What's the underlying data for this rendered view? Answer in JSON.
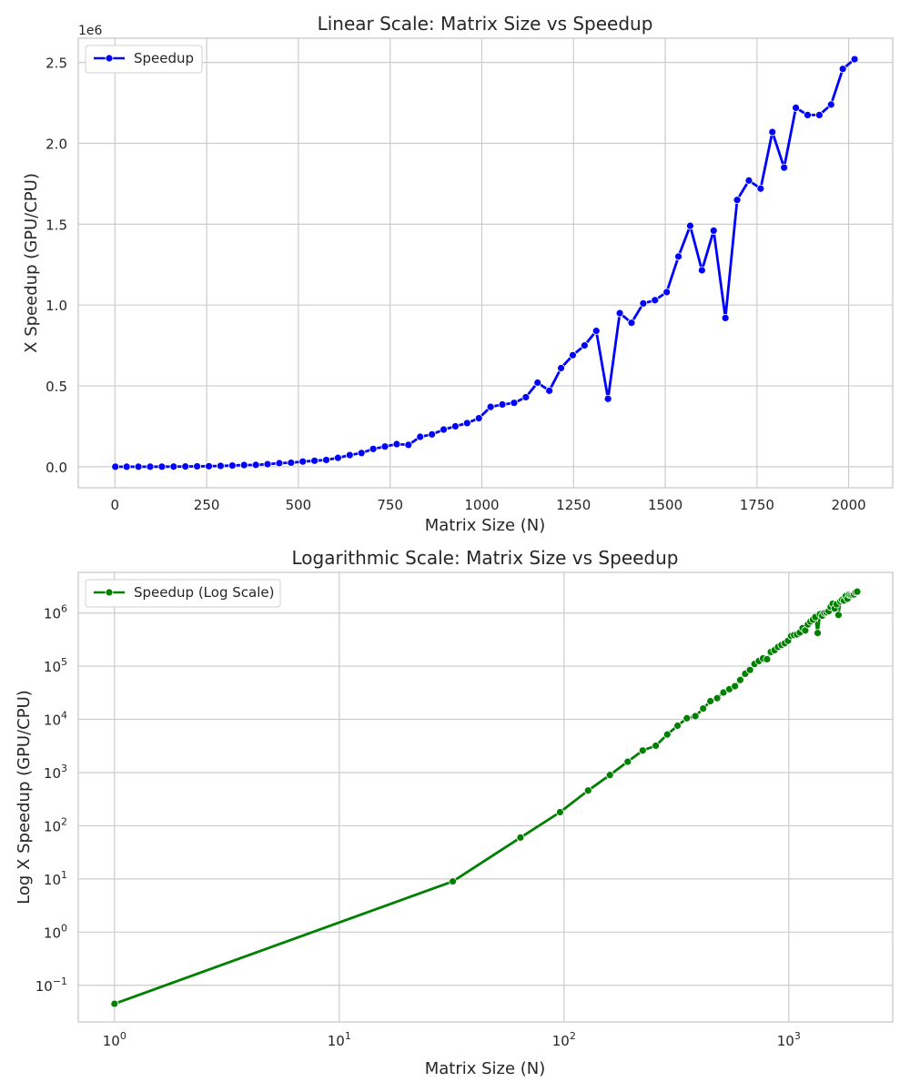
{
  "chart_data": [
    {
      "type": "line",
      "title": "Linear Scale: Matrix Size vs Speedup",
      "xlabel": "Matrix Size (N)",
      "ylabel": "X Speedup (GPU/CPU)",
      "y_offset_label": "1e6",
      "xscale": "linear",
      "yscale": "linear",
      "xlim": [
        -100,
        2120
      ],
      "ylim": [
        -130000,
        2650000
      ],
      "x_ticks": [
        0,
        250,
        500,
        750,
        1000,
        1250,
        1500,
        1750,
        2000
      ],
      "x_tick_labels": [
        "0",
        "250",
        "500",
        "750",
        "1000",
        "1250",
        "1500",
        "1750",
        "2000"
      ],
      "y_ticks": [
        0,
        500000,
        1000000,
        1500000,
        2000000,
        2500000
      ],
      "y_tick_labels": [
        "0.0",
        "0.5",
        "1.0",
        "1.5",
        "2.0",
        "2.5"
      ],
      "grid": true,
      "legend_position": "top-left",
      "color": "#0000ff",
      "series": [
        {
          "name": "Speedup",
          "x": [
            1,
            32,
            64,
            96,
            128,
            160,
            192,
            224,
            256,
            288,
            320,
            352,
            384,
            416,
            448,
            480,
            512,
            544,
            576,
            608,
            640,
            672,
            704,
            736,
            768,
            800,
            832,
            864,
            896,
            928,
            960,
            992,
            1024,
            1056,
            1088,
            1120,
            1152,
            1184,
            1216,
            1248,
            1280,
            1312,
            1344,
            1376,
            1408,
            1440,
            1472,
            1504,
            1536,
            1568,
            1600,
            1632,
            1664,
            1696,
            1728,
            1760,
            1792,
            1824,
            1856,
            1888,
            1920,
            1952,
            1984,
            2016
          ],
          "y": [
            0.045,
            9,
            60,
            180,
            460,
            900,
            1600,
            2600,
            3200,
            5200,
            7600,
            10500,
            11500,
            16000,
            22000,
            25000,
            32000,
            37000,
            42000,
            55000,
            72000,
            85000,
            110000,
            125000,
            140000,
            135000,
            185000,
            200000,
            230000,
            250000,
            270000,
            300000,
            370000,
            385000,
            395000,
            430000,
            520000,
            470000,
            610000,
            690000,
            750000,
            840000,
            420000,
            950000,
            890000,
            1010000,
            1030000,
            1080000,
            1300000,
            1490000,
            1215000,
            1460000,
            920000,
            1650000,
            1770000,
            1720000,
            2070000,
            1850000,
            2220000,
            2175000,
            2175000,
            2240000,
            2460000,
            2520000
          ]
        }
      ]
    },
    {
      "type": "line",
      "title": "Logarithmic Scale: Matrix Size vs Speedup",
      "xlabel": "Matrix Size (N)",
      "ylabel": "Log X Speedup (GPU/CPU)",
      "xscale": "log",
      "yscale": "log",
      "xlim": [
        0.69,
        2900
      ],
      "ylim": [
        0.0205,
        5800000
      ],
      "x_ticks": [
        1,
        10,
        100,
        1000
      ],
      "x_tick_labels": [
        {
          "base": "10",
          "exp": "0"
        },
        {
          "base": "10",
          "exp": "1"
        },
        {
          "base": "10",
          "exp": "2"
        },
        {
          "base": "10",
          "exp": "3"
        }
      ],
      "y_ticks": [
        0.1,
        1,
        10,
        100,
        1000,
        10000,
        100000,
        1000000
      ],
      "y_tick_labels": [
        {
          "base": "10",
          "exp": "−1"
        },
        {
          "base": "10",
          "exp": "0"
        },
        {
          "base": "10",
          "exp": "1"
        },
        {
          "base": "10",
          "exp": "2"
        },
        {
          "base": "10",
          "exp": "3"
        },
        {
          "base": "10",
          "exp": "4"
        },
        {
          "base": "10",
          "exp": "5"
        },
        {
          "base": "10",
          "exp": "6"
        }
      ],
      "grid": true,
      "legend_position": "top-left",
      "color": "#008000",
      "series": [
        {
          "name": "Speedup (Log Scale)",
          "x": [
            1,
            32,
            64,
            96,
            128,
            160,
            192,
            224,
            256,
            288,
            320,
            352,
            384,
            416,
            448,
            480,
            512,
            544,
            576,
            608,
            640,
            672,
            704,
            736,
            768,
            800,
            832,
            864,
            896,
            928,
            960,
            992,
            1024,
            1056,
            1088,
            1120,
            1152,
            1184,
            1216,
            1248,
            1280,
            1312,
            1344,
            1376,
            1408,
            1440,
            1472,
            1504,
            1536,
            1568,
            1600,
            1632,
            1664,
            1696,
            1728,
            1760,
            1792,
            1824,
            1856,
            1888,
            1920,
            1952,
            1984,
            2016
          ],
          "y": [
            0.045,
            9,
            60,
            180,
            460,
            900,
            1600,
            2600,
            3200,
            5200,
            7600,
            10500,
            11500,
            16000,
            22000,
            25000,
            32000,
            37000,
            42000,
            55000,
            72000,
            85000,
            110000,
            125000,
            140000,
            135000,
            185000,
            200000,
            230000,
            250000,
            270000,
            300000,
            370000,
            385000,
            395000,
            430000,
            520000,
            470000,
            610000,
            690000,
            750000,
            840000,
            420000,
            950000,
            890000,
            1010000,
            1030000,
            1080000,
            1300000,
            1490000,
            1215000,
            1460000,
            920000,
            1650000,
            1770000,
            1720000,
            2070000,
            1850000,
            2220000,
            2175000,
            2175000,
            2240000,
            2460000,
            2520000
          ]
        }
      ]
    }
  ]
}
